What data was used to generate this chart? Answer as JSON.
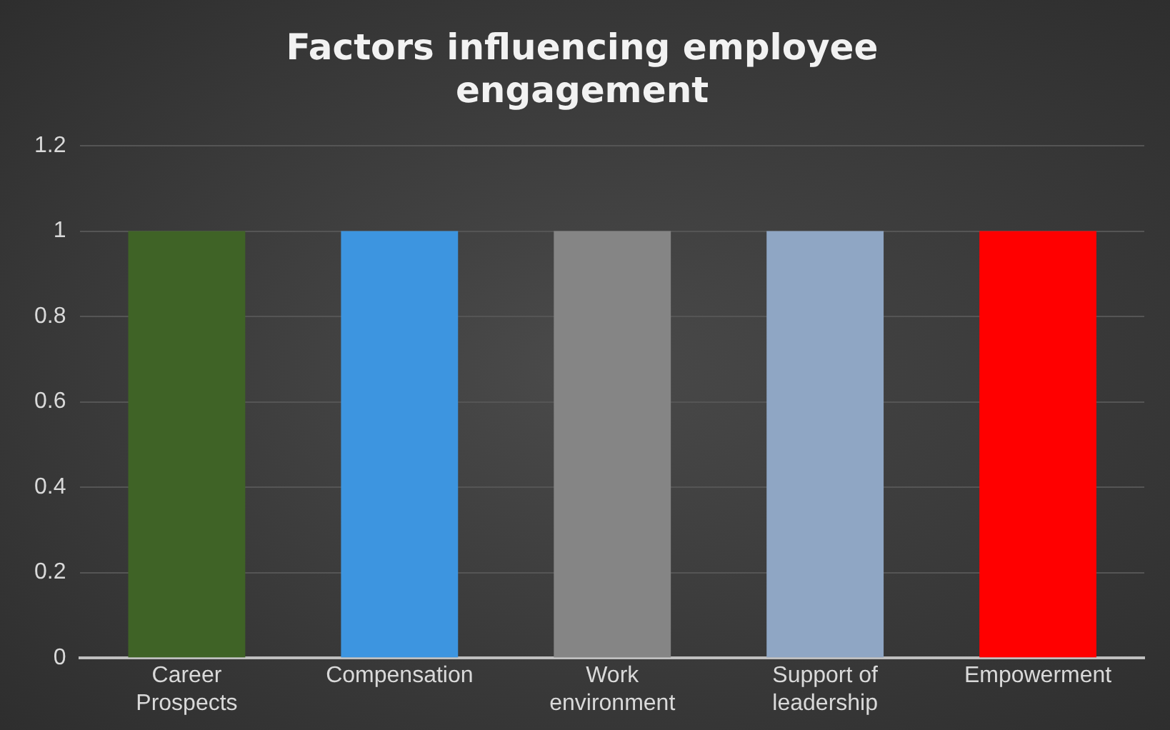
{
  "chart_data": {
    "type": "bar",
    "title": "Factors influencing employee engagement",
    "categories": [
      "Career Prospects",
      "Compensation",
      "Work environment",
      "Support of leadership",
      "Empowerment"
    ],
    "values": [
      1,
      1,
      1,
      1,
      1
    ],
    "colors": [
      "#3f6326",
      "#3d95e0",
      "#858585",
      "#8fa6c4",
      "#ff0000"
    ],
    "ylim": [
      0,
      1.2
    ],
    "yticks": [
      0,
      0.2,
      0.4,
      0.6,
      0.8,
      1,
      1.2
    ],
    "grid": "y",
    "legend": false
  }
}
